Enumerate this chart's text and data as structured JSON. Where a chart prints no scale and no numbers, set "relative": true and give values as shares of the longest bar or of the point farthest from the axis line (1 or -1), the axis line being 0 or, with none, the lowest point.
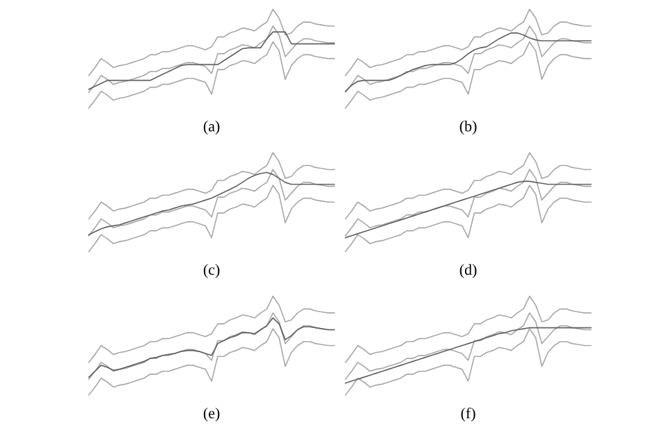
{
  "chart_data": [
    {
      "type": "line",
      "relative": true,
      "xlabel": "(a)",
      "categories": [
        null,
        null,
        null,
        null,
        null,
        null,
        null,
        null,
        null,
        null,
        null,
        null,
        null,
        null,
        null,
        null,
        null,
        null,
        null,
        null,
        null,
        null,
        null,
        null,
        null,
        null,
        null,
        null,
        null,
        null,
        null,
        null,
        null,
        null,
        null,
        null,
        null,
        null,
        null,
        null,
        null
      ],
      "series": [
        {
          "color": "#a8a8a8",
          "values": [
            0.33,
            0.41,
            0.5,
            0.46,
            0.41,
            0.43,
            0.44,
            0.46,
            0.48,
            0.5,
            0.54,
            0.54,
            0.57,
            0.57,
            0.59,
            0.61,
            0.63,
            0.63,
            0.61,
            0.59,
            0.62,
            0.72,
            0.72,
            0.76,
            0.78,
            0.81,
            0.8,
            0.78,
            0.83,
            0.87,
            1.0,
            0.91,
            0.74,
            0.76,
            0.83,
            0.87,
            0.87,
            0.85,
            0.84,
            0.83,
            0.83
          ]
        },
        {
          "color": "#a8a8a8",
          "values": [
            0.16,
            0.24,
            0.33,
            0.29,
            0.24,
            0.26,
            0.27,
            0.29,
            0.31,
            0.33,
            0.37,
            0.37,
            0.4,
            0.4,
            0.42,
            0.44,
            0.46,
            0.46,
            0.44,
            0.42,
            0.35,
            0.55,
            0.55,
            0.59,
            0.61,
            0.64,
            0.63,
            0.61,
            0.66,
            0.7,
            0.83,
            0.74,
            0.52,
            0.59,
            0.66,
            0.7,
            0.7,
            0.68,
            0.67,
            0.66,
            0.66
          ]
        },
        {
          "color": "#a8a8a8",
          "values": [
            0.0,
            0.08,
            0.17,
            0.13,
            0.08,
            0.1,
            0.11,
            0.13,
            0.15,
            0.17,
            0.21,
            0.21,
            0.24,
            0.24,
            0.26,
            0.28,
            0.3,
            0.3,
            0.28,
            0.26,
            0.14,
            0.39,
            0.39,
            0.43,
            0.45,
            0.48,
            0.47,
            0.45,
            0.5,
            0.54,
            0.67,
            0.58,
            0.29,
            0.43,
            0.5,
            0.54,
            0.54,
            0.52,
            0.51,
            0.5,
            0.5
          ]
        },
        {
          "color": "#606060",
          "values": [
            0.19,
            0.22,
            0.25,
            0.28,
            0.28,
            0.28,
            0.28,
            0.28,
            0.28,
            0.28,
            0.28,
            0.31,
            0.34,
            0.37,
            0.4,
            0.43,
            0.44,
            0.44,
            0.44,
            0.44,
            0.44,
            0.44,
            0.48,
            0.52,
            0.56,
            0.6,
            0.61,
            0.61,
            0.61,
            0.7,
            0.77,
            0.77,
            0.77,
            0.65,
            0.65,
            0.65,
            0.65,
            0.65,
            0.65,
            0.65,
            0.65
          ]
        }
      ]
    },
    {
      "type": "line",
      "relative": true,
      "xlabel": "(b)",
      "categories": [
        null,
        null,
        null,
        null,
        null,
        null,
        null,
        null,
        null,
        null,
        null,
        null,
        null,
        null,
        null,
        null,
        null,
        null,
        null,
        null,
        null,
        null,
        null,
        null,
        null,
        null,
        null,
        null,
        null,
        null,
        null,
        null,
        null,
        null,
        null,
        null,
        null,
        null,
        null,
        null,
        null
      ],
      "series": [
        {
          "color": "#a8a8a8",
          "values": [
            0.33,
            0.41,
            0.5,
            0.46,
            0.41,
            0.43,
            0.44,
            0.46,
            0.48,
            0.5,
            0.54,
            0.54,
            0.57,
            0.57,
            0.59,
            0.61,
            0.63,
            0.63,
            0.61,
            0.59,
            0.62,
            0.72,
            0.72,
            0.76,
            0.78,
            0.81,
            0.8,
            0.78,
            0.83,
            0.87,
            1.0,
            0.91,
            0.74,
            0.76,
            0.83,
            0.87,
            0.87,
            0.85,
            0.84,
            0.83,
            0.83
          ]
        },
        {
          "color": "#a8a8a8",
          "values": [
            0.16,
            0.24,
            0.33,
            0.29,
            0.24,
            0.26,
            0.27,
            0.29,
            0.31,
            0.33,
            0.37,
            0.37,
            0.4,
            0.4,
            0.42,
            0.44,
            0.46,
            0.46,
            0.44,
            0.42,
            0.35,
            0.55,
            0.55,
            0.59,
            0.61,
            0.64,
            0.63,
            0.61,
            0.66,
            0.7,
            0.83,
            0.74,
            0.52,
            0.59,
            0.66,
            0.7,
            0.7,
            0.68,
            0.67,
            0.66,
            0.66
          ]
        },
        {
          "color": "#a8a8a8",
          "values": [
            0.0,
            0.08,
            0.17,
            0.13,
            0.08,
            0.1,
            0.11,
            0.13,
            0.15,
            0.17,
            0.21,
            0.21,
            0.24,
            0.24,
            0.26,
            0.28,
            0.3,
            0.3,
            0.28,
            0.26,
            0.14,
            0.39,
            0.39,
            0.43,
            0.45,
            0.48,
            0.47,
            0.45,
            0.5,
            0.54,
            0.67,
            0.58,
            0.29,
            0.43,
            0.5,
            0.54,
            0.54,
            0.52,
            0.51,
            0.5,
            0.5
          ]
        },
        {
          "color": "#606060",
          "values": [
            0.17,
            0.23,
            0.27,
            0.28,
            0.28,
            0.28,
            0.28,
            0.28,
            0.3,
            0.33,
            0.36,
            0.39,
            0.41,
            0.43,
            0.44,
            0.44,
            0.44,
            0.44,
            0.46,
            0.5,
            0.55,
            0.59,
            0.61,
            0.62,
            0.66,
            0.7,
            0.73,
            0.76,
            0.76,
            0.74,
            0.71,
            0.69,
            0.68,
            0.68,
            0.68,
            0.68,
            0.68,
            0.68,
            0.68,
            0.68,
            0.68
          ]
        }
      ]
    },
    {
      "type": "line",
      "relative": true,
      "xlabel": "(c)",
      "categories": [
        null,
        null,
        null,
        null,
        null,
        null,
        null,
        null,
        null,
        null,
        null,
        null,
        null,
        null,
        null,
        null,
        null,
        null,
        null,
        null,
        null,
        null,
        null,
        null,
        null,
        null,
        null,
        null,
        null,
        null,
        null,
        null,
        null,
        null,
        null,
        null,
        null,
        null,
        null,
        null,
        null
      ],
      "series": [
        {
          "color": "#a8a8a8",
          "values": [
            0.33,
            0.41,
            0.5,
            0.46,
            0.41,
            0.43,
            0.44,
            0.46,
            0.48,
            0.5,
            0.54,
            0.54,
            0.57,
            0.57,
            0.59,
            0.61,
            0.63,
            0.63,
            0.61,
            0.59,
            0.62,
            0.72,
            0.72,
            0.76,
            0.78,
            0.81,
            0.8,
            0.78,
            0.83,
            0.87,
            1.0,
            0.91,
            0.74,
            0.76,
            0.83,
            0.87,
            0.87,
            0.85,
            0.84,
            0.83,
            0.83
          ]
        },
        {
          "color": "#a8a8a8",
          "values": [
            0.16,
            0.24,
            0.33,
            0.29,
            0.24,
            0.26,
            0.27,
            0.29,
            0.31,
            0.33,
            0.37,
            0.37,
            0.4,
            0.4,
            0.42,
            0.44,
            0.46,
            0.46,
            0.44,
            0.42,
            0.35,
            0.55,
            0.55,
            0.59,
            0.61,
            0.64,
            0.63,
            0.61,
            0.66,
            0.7,
            0.83,
            0.74,
            0.52,
            0.59,
            0.66,
            0.7,
            0.7,
            0.68,
            0.67,
            0.66,
            0.66
          ]
        },
        {
          "color": "#a8a8a8",
          "values": [
            0.0,
            0.08,
            0.17,
            0.13,
            0.08,
            0.1,
            0.11,
            0.13,
            0.15,
            0.17,
            0.21,
            0.21,
            0.24,
            0.24,
            0.26,
            0.28,
            0.3,
            0.3,
            0.28,
            0.26,
            0.14,
            0.39,
            0.39,
            0.43,
            0.45,
            0.48,
            0.47,
            0.45,
            0.5,
            0.54,
            0.67,
            0.58,
            0.29,
            0.43,
            0.5,
            0.54,
            0.54,
            0.52,
            0.51,
            0.5,
            0.5
          ]
        },
        {
          "color": "#606060",
          "values": [
            0.17,
            0.2,
            0.23,
            0.25,
            0.26,
            0.27,
            0.29,
            0.31,
            0.33,
            0.35,
            0.37,
            0.39,
            0.41,
            0.42,
            0.44,
            0.46,
            0.47,
            0.48,
            0.5,
            0.52,
            0.54,
            0.57,
            0.6,
            0.63,
            0.66,
            0.7,
            0.74,
            0.77,
            0.79,
            0.8,
            0.78,
            0.74,
            0.7,
            0.68,
            0.68,
            0.68,
            0.68,
            0.68,
            0.68,
            0.68,
            0.68
          ]
        }
      ]
    },
    {
      "type": "line",
      "relative": true,
      "xlabel": "(d)",
      "categories": [
        null,
        null,
        null,
        null,
        null,
        null,
        null,
        null,
        null,
        null,
        null,
        null,
        null,
        null,
        null,
        null,
        null,
        null,
        null,
        null,
        null,
        null,
        null,
        null,
        null,
        null,
        null,
        null,
        null,
        null,
        null,
        null,
        null,
        null,
        null,
        null,
        null,
        null,
        null,
        null,
        null
      ],
      "series": [
        {
          "color": "#a8a8a8",
          "values": [
            0.33,
            0.41,
            0.5,
            0.46,
            0.41,
            0.43,
            0.44,
            0.46,
            0.48,
            0.5,
            0.54,
            0.54,
            0.57,
            0.57,
            0.59,
            0.61,
            0.63,
            0.63,
            0.61,
            0.59,
            0.62,
            0.72,
            0.72,
            0.76,
            0.78,
            0.81,
            0.8,
            0.78,
            0.83,
            0.87,
            1.0,
            0.91,
            0.74,
            0.76,
            0.83,
            0.87,
            0.87,
            0.85,
            0.84,
            0.83,
            0.83
          ]
        },
        {
          "color": "#a8a8a8",
          "values": [
            0.16,
            0.24,
            0.33,
            0.29,
            0.24,
            0.26,
            0.27,
            0.29,
            0.31,
            0.33,
            0.37,
            0.37,
            0.4,
            0.4,
            0.42,
            0.44,
            0.46,
            0.46,
            0.44,
            0.42,
            0.35,
            0.55,
            0.55,
            0.59,
            0.61,
            0.64,
            0.63,
            0.61,
            0.66,
            0.7,
            0.83,
            0.74,
            0.52,
            0.59,
            0.66,
            0.7,
            0.7,
            0.68,
            0.67,
            0.66,
            0.66
          ]
        },
        {
          "color": "#a8a8a8",
          "values": [
            0.0,
            0.08,
            0.17,
            0.13,
            0.08,
            0.1,
            0.11,
            0.13,
            0.15,
            0.17,
            0.21,
            0.21,
            0.24,
            0.24,
            0.26,
            0.28,
            0.3,
            0.3,
            0.28,
            0.26,
            0.14,
            0.39,
            0.39,
            0.43,
            0.45,
            0.48,
            0.47,
            0.45,
            0.5,
            0.54,
            0.67,
            0.58,
            0.29,
            0.43,
            0.5,
            0.54,
            0.54,
            0.52,
            0.51,
            0.5,
            0.5
          ]
        },
        {
          "color": "#606060",
          "values": [
            0.14,
            0.16,
            0.18,
            0.2,
            0.22,
            0.24,
            0.26,
            0.28,
            0.3,
            0.32,
            0.34,
            0.36,
            0.38,
            0.4,
            0.42,
            0.44,
            0.46,
            0.48,
            0.5,
            0.52,
            0.54,
            0.56,
            0.58,
            0.6,
            0.62,
            0.64,
            0.66,
            0.68,
            0.7,
            0.71,
            0.71,
            0.7,
            0.69,
            0.68,
            0.68,
            0.68,
            0.68,
            0.68,
            0.68,
            0.68,
            0.68
          ]
        }
      ]
    },
    {
      "type": "line",
      "relative": true,
      "xlabel": "(e)",
      "categories": [
        null,
        null,
        null,
        null,
        null,
        null,
        null,
        null,
        null,
        null,
        null,
        null,
        null,
        null,
        null,
        null,
        null,
        null,
        null,
        null,
        null,
        null,
        null,
        null,
        null,
        null,
        null,
        null,
        null,
        null,
        null,
        null,
        null,
        null,
        null,
        null,
        null,
        null,
        null,
        null,
        null
      ],
      "series": [
        {
          "color": "#a8a8a8",
          "values": [
            0.33,
            0.41,
            0.5,
            0.46,
            0.41,
            0.43,
            0.44,
            0.46,
            0.48,
            0.5,
            0.54,
            0.54,
            0.57,
            0.57,
            0.59,
            0.61,
            0.63,
            0.63,
            0.61,
            0.59,
            0.62,
            0.72,
            0.72,
            0.76,
            0.78,
            0.81,
            0.8,
            0.78,
            0.83,
            0.87,
            1.0,
            0.91,
            0.74,
            0.76,
            0.83,
            0.87,
            0.87,
            0.85,
            0.84,
            0.83,
            0.83
          ]
        },
        {
          "color": "#a8a8a8",
          "values": [
            0.16,
            0.24,
            0.33,
            0.29,
            0.24,
            0.26,
            0.27,
            0.29,
            0.31,
            0.33,
            0.37,
            0.37,
            0.4,
            0.4,
            0.42,
            0.44,
            0.46,
            0.46,
            0.44,
            0.42,
            0.35,
            0.55,
            0.55,
            0.59,
            0.61,
            0.64,
            0.63,
            0.61,
            0.66,
            0.7,
            0.83,
            0.74,
            0.52,
            0.59,
            0.66,
            0.7,
            0.7,
            0.68,
            0.67,
            0.66,
            0.66
          ]
        },
        {
          "color": "#a8a8a8",
          "values": [
            0.0,
            0.08,
            0.17,
            0.13,
            0.08,
            0.1,
            0.11,
            0.13,
            0.15,
            0.17,
            0.21,
            0.21,
            0.24,
            0.24,
            0.26,
            0.28,
            0.3,
            0.3,
            0.28,
            0.26,
            0.14,
            0.39,
            0.39,
            0.43,
            0.45,
            0.48,
            0.47,
            0.45,
            0.5,
            0.54,
            0.67,
            0.58,
            0.29,
            0.43,
            0.5,
            0.54,
            0.54,
            0.52,
            0.51,
            0.5,
            0.5
          ]
        },
        {
          "color": "#606060",
          "values": [
            0.18,
            0.24,
            0.3,
            0.28,
            0.25,
            0.26,
            0.28,
            0.3,
            0.32,
            0.34,
            0.37,
            0.38,
            0.4,
            0.41,
            0.42,
            0.44,
            0.45,
            0.45,
            0.44,
            0.42,
            0.4,
            0.52,
            0.55,
            0.58,
            0.6,
            0.63,
            0.63,
            0.62,
            0.66,
            0.7,
            0.78,
            0.72,
            0.56,
            0.6,
            0.66,
            0.69,
            0.69,
            0.68,
            0.67,
            0.66,
            0.66
          ]
        }
      ]
    },
    {
      "type": "line",
      "relative": true,
      "xlabel": "(f)",
      "categories": [
        null,
        null,
        null,
        null,
        null,
        null,
        null,
        null,
        null,
        null,
        null,
        null,
        null,
        null,
        null,
        null,
        null,
        null,
        null,
        null,
        null,
        null,
        null,
        null,
        null,
        null,
        null,
        null,
        null,
        null,
        null,
        null,
        null,
        null,
        null,
        null,
        null,
        null,
        null,
        null,
        null
      ],
      "series": [
        {
          "color": "#a8a8a8",
          "values": [
            0.33,
            0.41,
            0.5,
            0.46,
            0.41,
            0.43,
            0.44,
            0.46,
            0.48,
            0.5,
            0.54,
            0.54,
            0.57,
            0.57,
            0.59,
            0.61,
            0.63,
            0.63,
            0.61,
            0.59,
            0.62,
            0.72,
            0.72,
            0.76,
            0.78,
            0.81,
            0.8,
            0.78,
            0.83,
            0.87,
            1.0,
            0.91,
            0.74,
            0.76,
            0.83,
            0.87,
            0.87,
            0.85,
            0.84,
            0.83,
            0.83
          ]
        },
        {
          "color": "#a8a8a8",
          "values": [
            0.16,
            0.24,
            0.33,
            0.29,
            0.24,
            0.26,
            0.27,
            0.29,
            0.31,
            0.33,
            0.37,
            0.37,
            0.4,
            0.4,
            0.42,
            0.44,
            0.46,
            0.46,
            0.44,
            0.42,
            0.35,
            0.55,
            0.55,
            0.59,
            0.61,
            0.64,
            0.63,
            0.61,
            0.66,
            0.7,
            0.83,
            0.74,
            0.52,
            0.59,
            0.66,
            0.7,
            0.7,
            0.68,
            0.67,
            0.66,
            0.66
          ]
        },
        {
          "color": "#a8a8a8",
          "values": [
            0.0,
            0.08,
            0.17,
            0.13,
            0.08,
            0.1,
            0.11,
            0.13,
            0.15,
            0.17,
            0.21,
            0.21,
            0.24,
            0.24,
            0.26,
            0.28,
            0.3,
            0.3,
            0.28,
            0.26,
            0.14,
            0.39,
            0.39,
            0.43,
            0.45,
            0.48,
            0.47,
            0.45,
            0.5,
            0.54,
            0.67,
            0.58,
            0.29,
            0.43,
            0.5,
            0.54,
            0.54,
            0.52,
            0.51,
            0.5,
            0.5
          ]
        },
        {
          "color": "#606060",
          "values": [
            0.12,
            0.14,
            0.16,
            0.18,
            0.2,
            0.22,
            0.24,
            0.26,
            0.28,
            0.3,
            0.32,
            0.34,
            0.36,
            0.38,
            0.4,
            0.42,
            0.44,
            0.46,
            0.48,
            0.5,
            0.52,
            0.54,
            0.56,
            0.58,
            0.6,
            0.62,
            0.63,
            0.65,
            0.66,
            0.67,
            0.68,
            0.68,
            0.68,
            0.68,
            0.68,
            0.68,
            0.68,
            0.68,
            0.68,
            0.68,
            0.68
          ]
        }
      ]
    }
  ]
}
